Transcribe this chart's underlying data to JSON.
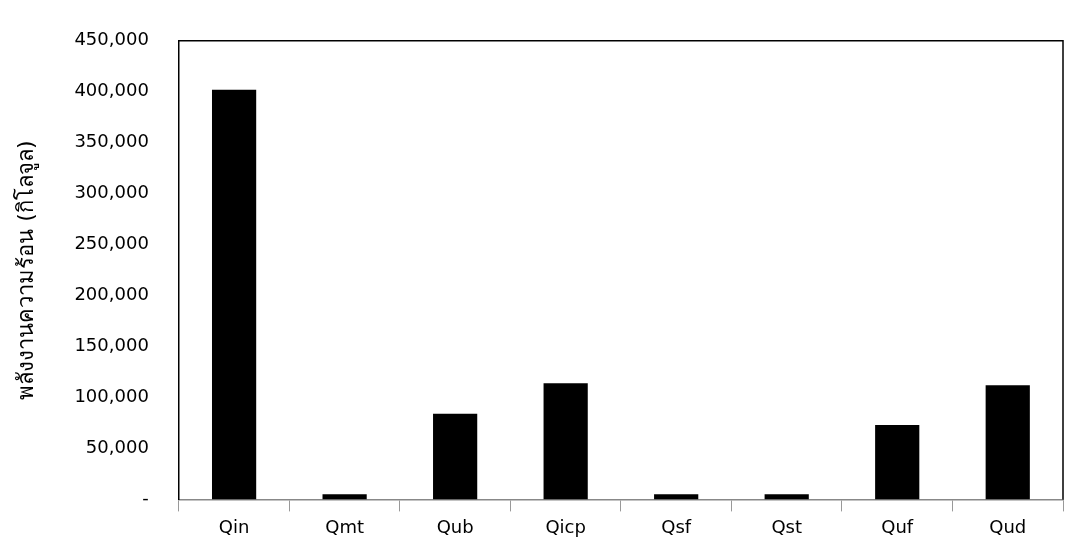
{
  "chart_data": {
    "type": "bar",
    "ylabel": "พลังงานความร้อน (กิโลจูล)",
    "categories": [
      "Qin",
      "Qmt",
      "Qub",
      "Qicp",
      "Qsf",
      "Qst",
      "Quf",
      "Qud"
    ],
    "values": [
      402000,
      5000,
      84000,
      114000,
      5000,
      5000,
      73000,
      112000
    ],
    "color": "#000000",
    "ylim": [
      0,
      450000
    ],
    "yticks": [
      {
        "value": 0,
        "label": "-"
      },
      {
        "value": 50000,
        "label": "50,000"
      },
      {
        "value": 100000,
        "label": "100,000"
      },
      {
        "value": 150000,
        "label": "150,000"
      },
      {
        "value": 200000,
        "label": "200,000"
      },
      {
        "value": 250000,
        "label": "250,000"
      },
      {
        "value": 300000,
        "label": "300,000"
      },
      {
        "value": 350000,
        "label": "350,000"
      },
      {
        "value": 400000,
        "label": "400,000"
      },
      {
        "value": 450000,
        "label": "450,000"
      }
    ],
    "grid": false,
    "legend": false
  }
}
